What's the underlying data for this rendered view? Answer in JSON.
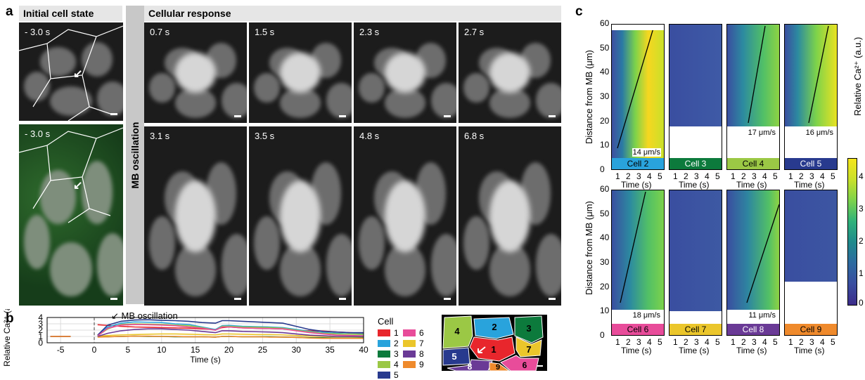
{
  "panel_a": {
    "letter": "a",
    "initial_header": "Initial cell state",
    "response_header": "Cellular response",
    "side_label": "MB oscillation",
    "initial_times": [
      "- 3.0 s",
      "- 3.0 s"
    ],
    "response_times": [
      "0.7 s",
      "1.5 s",
      "2.3 s",
      "2.7 s",
      "3.1 s",
      "3.5 s",
      "4.8 s",
      "6.8 s"
    ]
  },
  "panel_b": {
    "letter": "b",
    "annotation": "MB oscillation",
    "legend_title": "Cell",
    "map_labels": [
      "4",
      "2",
      "3",
      "5",
      "1",
      "7",
      "8",
      "6",
      "9"
    ]
  },
  "panel_c": {
    "letter": "c",
    "ylabel": "Distance from MB (μm)",
    "xlabel": "Time (s)",
    "colorbar_label": "Relative Ca²⁺ (a.u.)",
    "colorbar_ticks": [
      "4",
      "3",
      "2",
      "1",
      "0"
    ],
    "x_ticks": [
      "1",
      "2",
      "3",
      "4",
      "5"
    ],
    "y_ticks": [
      "0",
      "10",
      "20",
      "30",
      "40",
      "50",
      "60"
    ],
    "cells": [
      {
        "name": "Cell 2",
        "color": "#29a3dc",
        "speed": "14 μm/s",
        "text": "#000"
      },
      {
        "name": "Cell 3",
        "color": "#0c7a3c",
        "speed": "",
        "text": "#fff"
      },
      {
        "name": "Cell 4",
        "color": "#9bc845",
        "speed": "17 μm/s",
        "text": "#000"
      },
      {
        "name": "Cell 5",
        "color": "#283a8e",
        "speed": "16 μm/s",
        "text": "#fff"
      },
      {
        "name": "Cell 6",
        "color": "#e84c9a",
        "speed": "18 μm/s",
        "text": "#000"
      },
      {
        "name": "Cell 7",
        "color": "#ebc62b",
        "speed": "",
        "text": "#000"
      },
      {
        "name": "Cell 8",
        "color": "#6a3a96",
        "speed": "11 μm/s",
        "text": "#fff"
      },
      {
        "name": "Cell 9",
        "color": "#ef8a2c",
        "speed": "",
        "text": "#000"
      }
    ]
  },
  "chart_data": {
    "type": "line",
    "title": "",
    "xlabel": "Time (s)",
    "ylabel": "Relative Ca²⁺ (a.u.)",
    "xlim": [
      -7,
      40
    ],
    "ylim": [
      0,
      4
    ],
    "x_ticks": [
      -5,
      0,
      5,
      10,
      15,
      20,
      25,
      30,
      35,
      40
    ],
    "y_ticks": [
      0,
      1,
      2,
      3,
      4
    ],
    "grid": true,
    "legend_position": "right",
    "x": [
      0.5,
      2,
      4,
      6,
      8,
      10,
      12,
      14,
      16,
      18,
      19,
      20,
      22,
      24,
      26,
      28,
      30,
      32,
      34,
      36,
      38,
      40
    ],
    "series": [
      {
        "name": "1",
        "color": "#e8262c",
        "values": [
          2.85,
          2.75,
          2.6,
          2.5,
          2.45,
          2.4,
          2.35,
          2.3,
          2.2,
          2.1,
          2.4,
          2.5,
          2.35,
          2.3,
          2.25,
          2.2,
          2.0,
          1.9,
          1.85,
          1.7,
          1.6,
          1.5
        ]
      },
      {
        "name": "2",
        "color": "#29a3dc",
        "values": [
          1.2,
          2.5,
          3.1,
          3.3,
          3.25,
          3.2,
          3.0,
          2.9,
          2.5,
          2.1,
          2.7,
          2.75,
          2.6,
          2.55,
          2.5,
          2.4,
          2.1,
          1.8,
          1.6,
          1.5,
          1.4,
          1.4
        ]
      },
      {
        "name": "3",
        "color": "#0c7a3c",
        "values": [
          1.0,
          0.95,
          1.0,
          1.05,
          1.0,
          1.0,
          0.95,
          0.95,
          0.95,
          0.9,
          1.0,
          1.0,
          0.95,
          0.95,
          0.95,
          0.9,
          0.85,
          0.8,
          0.8,
          0.75,
          0.75,
          0.8
        ]
      },
      {
        "name": "4",
        "color": "#9bc845",
        "values": [
          1.1,
          2.2,
          2.9,
          3.0,
          2.95,
          2.9,
          2.8,
          2.7,
          2.4,
          2.0,
          2.6,
          2.6,
          2.5,
          2.45,
          2.4,
          2.3,
          2.0,
          1.7,
          1.5,
          1.4,
          1.35,
          1.3
        ]
      },
      {
        "name": "5",
        "color": "#283a8e",
        "values": [
          1.2,
          2.8,
          3.4,
          3.6,
          3.65,
          3.55,
          3.5,
          3.4,
          3.2,
          3.1,
          3.5,
          3.5,
          3.4,
          3.3,
          3.2,
          3.1,
          2.6,
          2.1,
          1.8,
          1.7,
          1.6,
          1.6
        ]
      },
      {
        "name": "6",
        "color": "#e84c9a",
        "values": [
          1.1,
          2.3,
          2.8,
          2.9,
          2.85,
          2.8,
          2.7,
          2.5,
          2.3,
          2.0,
          2.5,
          2.5,
          2.35,
          2.3,
          2.25,
          2.2,
          1.9,
          1.6,
          1.4,
          1.2,
          1.15,
          1.1
        ]
      },
      {
        "name": "7",
        "color": "#ebc62b",
        "values": [
          1.05,
          1.15,
          1.25,
          1.3,
          1.35,
          1.4,
          1.4,
          1.35,
          1.3,
          1.25,
          1.4,
          1.4,
          1.35,
          1.3,
          1.3,
          1.25,
          1.15,
          1.05,
          1.0,
          0.95,
          0.95,
          0.95
        ]
      },
      {
        "name": "8",
        "color": "#6a3a96",
        "values": [
          1.0,
          1.5,
          1.9,
          2.1,
          2.2,
          2.2,
          2.1,
          2.0,
          1.8,
          1.6,
          1.9,
          1.9,
          1.8,
          1.75,
          1.7,
          1.6,
          1.4,
          1.2,
          1.1,
          1.0,
          1.0,
          1.0
        ]
      },
      {
        "name": "9",
        "color": "#ef8a2c",
        "values": [
          0.9,
          0.95,
          1.0,
          1.05,
          1.05,
          1.0,
          1.0,
          0.95,
          0.95,
          0.9,
          1.0,
          1.0,
          0.95,
          0.95,
          0.9,
          0.9,
          0.85,
          0.75,
          0.7,
          0.7,
          0.7,
          0.7
        ]
      }
    ],
    "baseline_series": {
      "x": [
        -6.5,
        -3.5
      ],
      "value": 1.0
    }
  }
}
